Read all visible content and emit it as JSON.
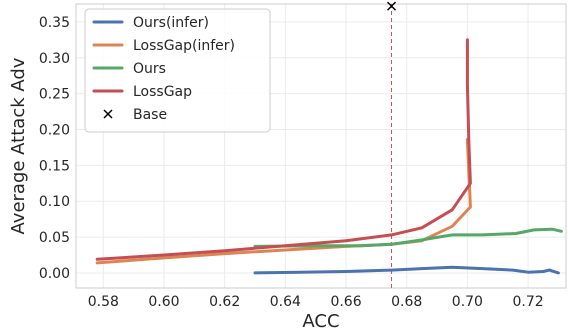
{
  "chart_data": {
    "type": "line",
    "title": "",
    "xlabel": "ACC",
    "ylabel": "Average Attack Adv",
    "xlim": [
      0.571,
      0.7325
    ],
    "ylim": [
      -0.021,
      0.375
    ],
    "xticks": [
      0.58,
      0.6,
      0.62,
      0.64,
      0.66,
      0.68,
      0.7,
      0.72
    ],
    "xtick_labels": [
      "0.58",
      "0.60",
      "0.62",
      "0.64",
      "0.66",
      "0.68",
      "0.70",
      "0.72"
    ],
    "yticks": [
      0.0,
      0.05,
      0.1,
      0.15,
      0.2,
      0.25,
      0.3,
      0.35
    ],
    "ytick_labels": [
      "0.00",
      "0.05",
      "0.10",
      "0.15",
      "0.20",
      "0.25",
      "0.30",
      "0.35"
    ],
    "grid": true,
    "legend_position": "top-left",
    "series": [
      {
        "name": "Ours(infer)",
        "color": "#4c72b0",
        "points": [
          [
            0.63,
            0.0
          ],
          [
            0.645,
            0.001
          ],
          [
            0.66,
            0.002
          ],
          [
            0.675,
            0.004
          ],
          [
            0.685,
            0.006
          ],
          [
            0.695,
            0.008
          ],
          [
            0.705,
            0.006
          ],
          [
            0.715,
            0.004
          ],
          [
            0.72,
            0.001
          ],
          [
            0.725,
            0.002
          ],
          [
            0.727,
            0.004
          ],
          [
            0.73,
            0.0
          ]
        ]
      },
      {
        "name": "LossGap(infer)",
        "color": "#dd8452",
        "points": [
          [
            0.578,
            0.014
          ],
          [
            0.6,
            0.021
          ],
          [
            0.62,
            0.027
          ],
          [
            0.64,
            0.032
          ],
          [
            0.66,
            0.037
          ],
          [
            0.675,
            0.04
          ],
          [
            0.685,
            0.045
          ],
          [
            0.695,
            0.065
          ],
          [
            0.701,
            0.092
          ],
          [
            0.7005,
            0.14
          ],
          [
            0.7,
            0.186
          ]
        ]
      },
      {
        "name": "Ours",
        "color": "#55a868",
        "points": [
          [
            0.63,
            0.037
          ],
          [
            0.65,
            0.038
          ],
          [
            0.665,
            0.038
          ],
          [
            0.675,
            0.04
          ],
          [
            0.685,
            0.046
          ],
          [
            0.695,
            0.053
          ],
          [
            0.705,
            0.053
          ],
          [
            0.716,
            0.055
          ],
          [
            0.722,
            0.06
          ],
          [
            0.728,
            0.061
          ],
          [
            0.731,
            0.058
          ]
        ]
      },
      {
        "name": "LossGap",
        "color": "#c44e52",
        "points": [
          [
            0.578,
            0.019
          ],
          [
            0.6,
            0.025
          ],
          [
            0.62,
            0.031
          ],
          [
            0.64,
            0.038
          ],
          [
            0.66,
            0.045
          ],
          [
            0.675,
            0.053
          ],
          [
            0.685,
            0.063
          ],
          [
            0.695,
            0.088
          ],
          [
            0.701,
            0.125
          ],
          [
            0.7005,
            0.18
          ],
          [
            0.7,
            0.262
          ],
          [
            0.7,
            0.325
          ]
        ]
      }
    ],
    "base": {
      "name": "Base",
      "marker": "x",
      "x": 0.675,
      "y": 0.372,
      "color": "#000000"
    },
    "reference_line": {
      "x": 0.675,
      "color": "#c44e52",
      "style": "dashed"
    }
  }
}
